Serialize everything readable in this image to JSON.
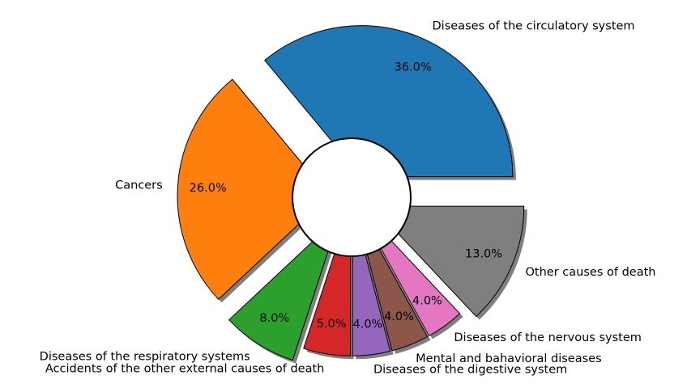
{
  "chart_data": {
    "type": "pie",
    "variant": "donut",
    "shadow": true,
    "exploded": true,
    "title": "",
    "slices": [
      {
        "label": "Diseases of the circulatory system",
        "value": 36.0,
        "pct_label": "36.0%",
        "color": "#1f77b4"
      },
      {
        "label": "Cancers",
        "value": 26.0,
        "pct_label": "26.0%",
        "color": "#ff7f0e"
      },
      {
        "label": "Diseases of the respiratory systems",
        "value": 8.0,
        "pct_label": "8.0%",
        "color": "#2ca02c"
      },
      {
        "label": "Accidents of the other external causes of death",
        "value": 5.0,
        "pct_label": "5.0%",
        "color": "#d62728"
      },
      {
        "label": "Diseases of the digestive system",
        "value": 4.0,
        "pct_label": "4.0%",
        "color": "#9467bd"
      },
      {
        "label": "Mental and bahavioral diseases",
        "value": 4.0,
        "pct_label": "4.0%",
        "color": "#8c564b"
      },
      {
        "label": "Diseases of the nervous system",
        "value": 4.0,
        "pct_label": "4.0%",
        "color": "#e377c2"
      },
      {
        "label": "Other causes of death",
        "value": 13.0,
        "pct_label": "13.0%",
        "color": "#7f7f7f"
      }
    ]
  }
}
